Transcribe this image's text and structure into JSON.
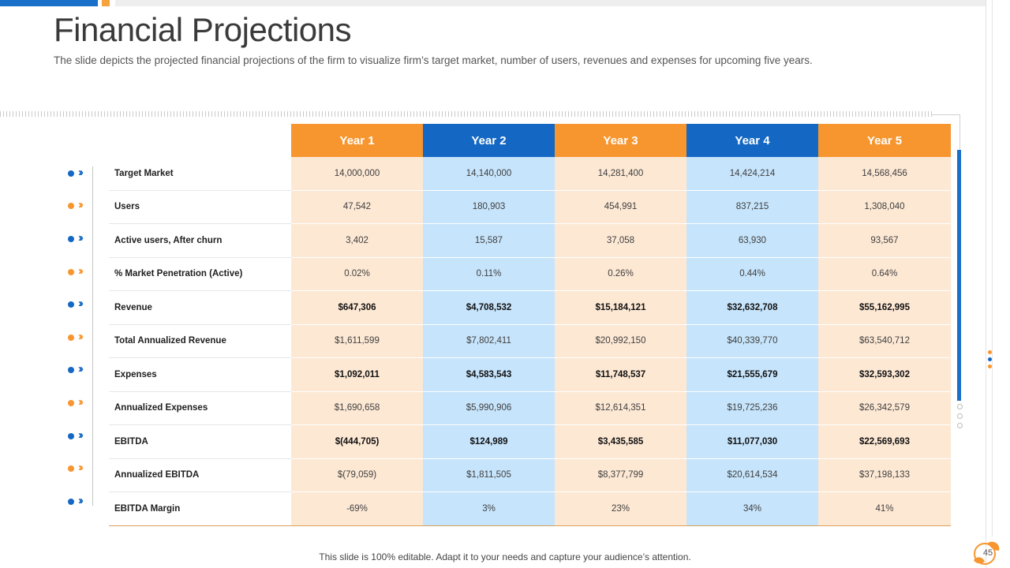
{
  "slide": {
    "title": "Financial Projections",
    "subtitle": "The slide depicts the projected financial projections of the firm to visualize firm’s target market, number of users, revenues and expenses for upcoming five years.",
    "footer": "This slide is 100% editable. Adapt it to your needs and capture your audience’s attention.",
    "page_number": "45"
  },
  "colors": {
    "orange": "#f7962f",
    "blue": "#1468c3",
    "orange_light": "#fde8d4",
    "blue_light": "#c6e4fb"
  },
  "table": {
    "headers": [
      "Year 1",
      "Year 2",
      "Year 3",
      "Year 4",
      "Year 5"
    ],
    "rows": [
      {
        "label": "Target Market",
        "bold": false,
        "values": [
          "14,000,000",
          "14,140,000",
          "14,281,400",
          "14,424,214",
          "14,568,456"
        ]
      },
      {
        "label": "Users",
        "bold": false,
        "values": [
          "47,542",
          "180,903",
          "454,991",
          "837,215",
          "1,308,040"
        ]
      },
      {
        "label": "Active users, After churn",
        "bold": false,
        "values": [
          "3,402",
          "15,587",
          "37,058",
          "63,930",
          "93,567"
        ]
      },
      {
        "label": "% Market Penetration (Active)",
        "bold": false,
        "values": [
          "0.02%",
          "0.11%",
          "0.26%",
          "0.44%",
          "0.64%"
        ]
      },
      {
        "label": "Revenue",
        "bold": true,
        "values": [
          "$647,306",
          "$4,708,532",
          "$15,184,121",
          "$32,632,708",
          "$55,162,995"
        ]
      },
      {
        "label": "Total Annualized Revenue",
        "bold": false,
        "values": [
          "$1,611,599",
          "$7,802,411",
          "$20,992,150",
          "$40,339,770",
          "$63,540,712"
        ]
      },
      {
        "label": "Expenses",
        "bold": true,
        "values": [
          "$1,092,011",
          "$4,583,543",
          "$11,748,537",
          "$21,555,679",
          "$32,593,302"
        ]
      },
      {
        "label": "Annualized Expenses",
        "bold": false,
        "values": [
          "$1,690,658",
          "$5,990,906",
          "$12,614,351",
          "$19,725,236",
          "$26,342,579"
        ]
      },
      {
        "label": "EBITDA",
        "bold": true,
        "values": [
          "$(444,705)",
          "$124,989",
          "$3,435,585",
          "$11,077,030",
          "$22,569,693"
        ]
      },
      {
        "label": "Annualized EBITDA",
        "bold": false,
        "values": [
          "$(79,059)",
          "$1,811,505",
          "$8,377,799",
          "$20,614,534",
          "$37,198,133"
        ]
      },
      {
        "label": "EBITDA Margin",
        "bold": false,
        "values": [
          "-69%",
          "3%",
          "23%",
          "34%",
          "41%"
        ]
      }
    ]
  },
  "icons": {
    "marker": "chevron-double-right-icon",
    "logo": "leaf-logo-icon"
  }
}
